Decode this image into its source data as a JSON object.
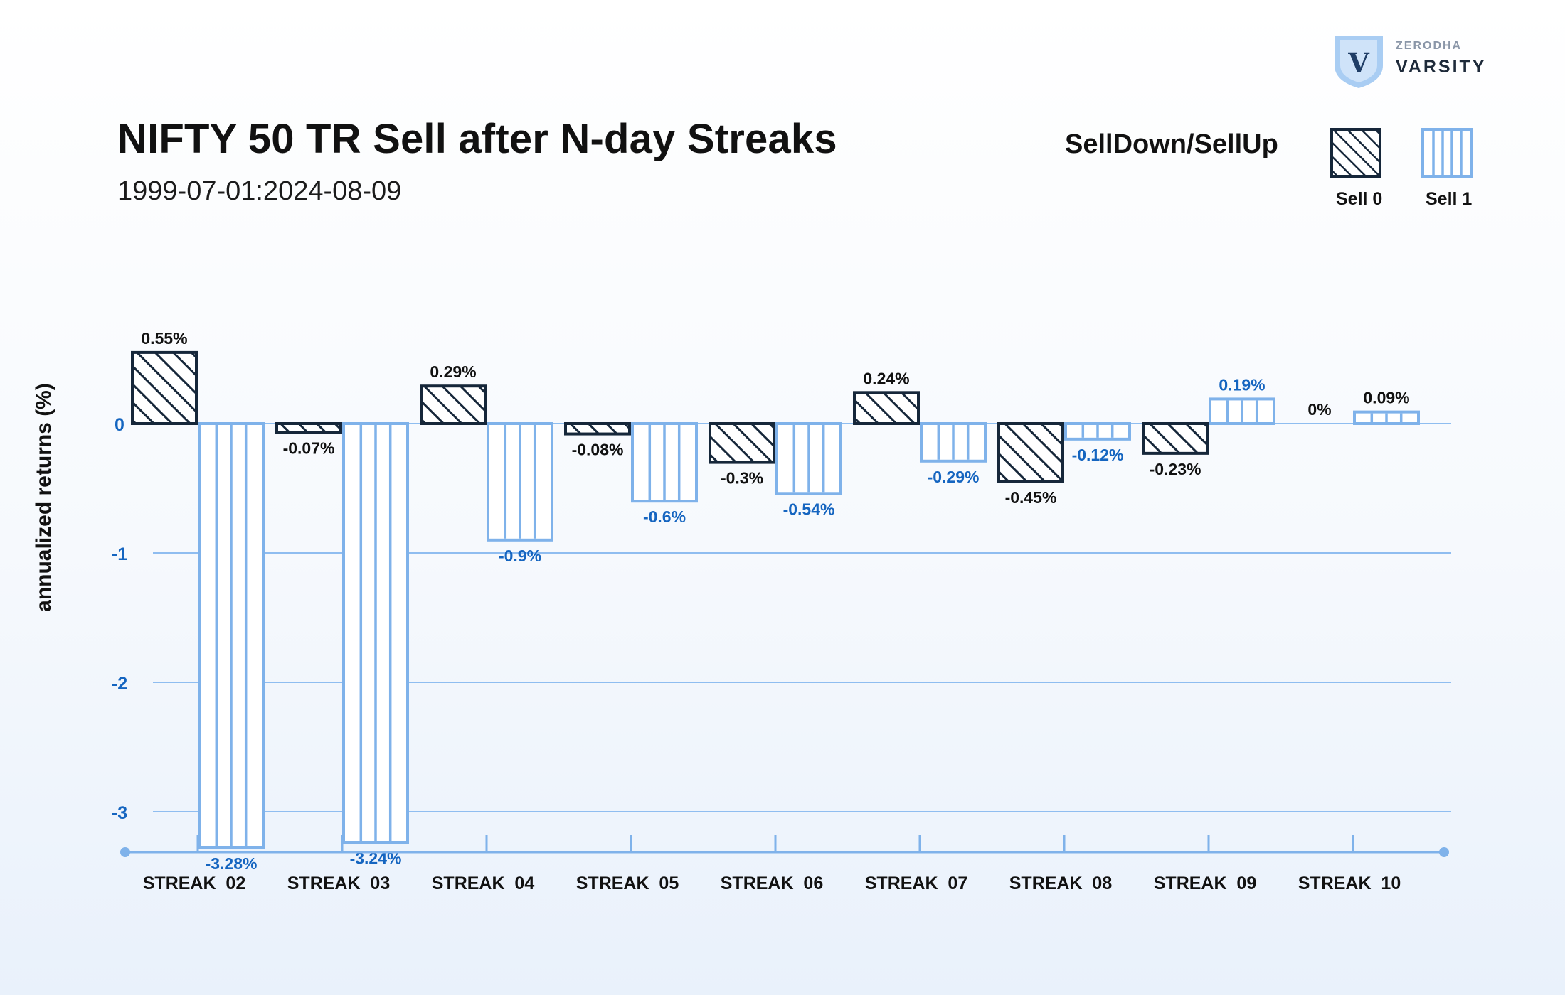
{
  "header": {
    "title": "NIFTY 50 TR Sell after N-day Streaks",
    "subtitle": "1999-07-01:2024-08-09"
  },
  "logo": {
    "brand_top": "ZERODHA",
    "brand_name": "VARSITY",
    "mark": "V"
  },
  "legend": {
    "title": "SellDown/SellUp",
    "items": [
      {
        "label": "Sell 0",
        "style": "hatched-diagonal",
        "color": "#16273a"
      },
      {
        "label": "Sell 1",
        "style": "hatched-vertical",
        "color": "#7fb2ea"
      }
    ]
  },
  "colors": {
    "sell0": "#16273a",
    "sell1": "#7fb2ea",
    "sell1_label": "#1565c0",
    "grid": "#8fbdf0",
    "axis": "#7fb2ea",
    "tick_label": "#1565c0"
  },
  "chart_data": {
    "type": "bar",
    "title": "NIFTY 50 TR Sell after N-day Streaks",
    "subtitle": "1999-07-01:2024-08-09",
    "xlabel": "",
    "ylabel": "annualized returns (%)",
    "ylim": [
      -3.3,
      0.6
    ],
    "yticks": [
      0,
      -1,
      -2,
      -3
    ],
    "grid": true,
    "legend_position": "top-right",
    "legend_title": "SellDown/SellUp",
    "categories": [
      "STREAK_02",
      "STREAK_03",
      "STREAK_04",
      "STREAK_05",
      "STREAK_06",
      "STREAK_07",
      "STREAK_08",
      "STREAK_09",
      "STREAK_10"
    ],
    "series": [
      {
        "name": "Sell 0",
        "values": [
          0.55,
          -0.07,
          0.29,
          -0.08,
          -0.3,
          0.24,
          -0.45,
          -0.23,
          0
        ],
        "labels": [
          "0.55%",
          "-0.07%",
          "0.29%",
          "-0.08%",
          "-0.3%",
          "0.24%",
          "-0.45%",
          "-0.23%",
          "0%"
        ]
      },
      {
        "name": "Sell 1",
        "values": [
          -3.28,
          -3.24,
          -0.9,
          -0.6,
          -0.54,
          -0.29,
          -0.12,
          0.19,
          0.09
        ],
        "labels": [
          "-3.28%",
          "-3.24%",
          "-0.9%",
          "-0.6%",
          "-0.54%",
          "-0.29%",
          "-0.12%",
          "0.19%",
          "0.09%"
        ]
      }
    ]
  }
}
